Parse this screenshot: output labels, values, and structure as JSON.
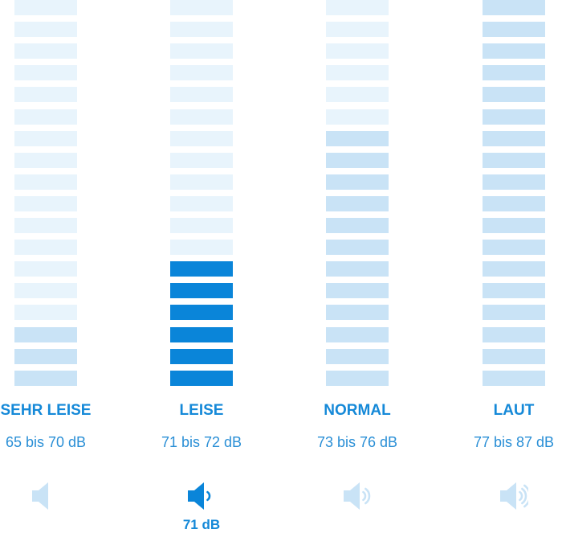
{
  "categories": [
    {
      "title": "SEHR LEISE",
      "range": "65 bis 70 dB",
      "level_segments": 3,
      "active": false,
      "speaker_waves": 0
    },
    {
      "title": "LEISE",
      "range": "71 bis 72 dB",
      "level_segments": 6,
      "active": true,
      "speaker_waves": 1
    },
    {
      "title": "NORMAL",
      "range": "73 bis 76 dB",
      "level_segments": 12,
      "active": false,
      "speaker_waves": 2
    },
    {
      "title": "LAUT",
      "range": "77 bis 87 dB",
      "level_segments": 18,
      "active": false,
      "speaker_waves": 3
    }
  ],
  "total_segments": 18,
  "current_reading": "71 dB",
  "colors": {
    "active": "#0a85d9",
    "inactive_level": "#c9e3f6",
    "empty": "#e8f4fc",
    "text": "#1589d8"
  },
  "icons": {
    "speaker": "speaker-icon"
  }
}
